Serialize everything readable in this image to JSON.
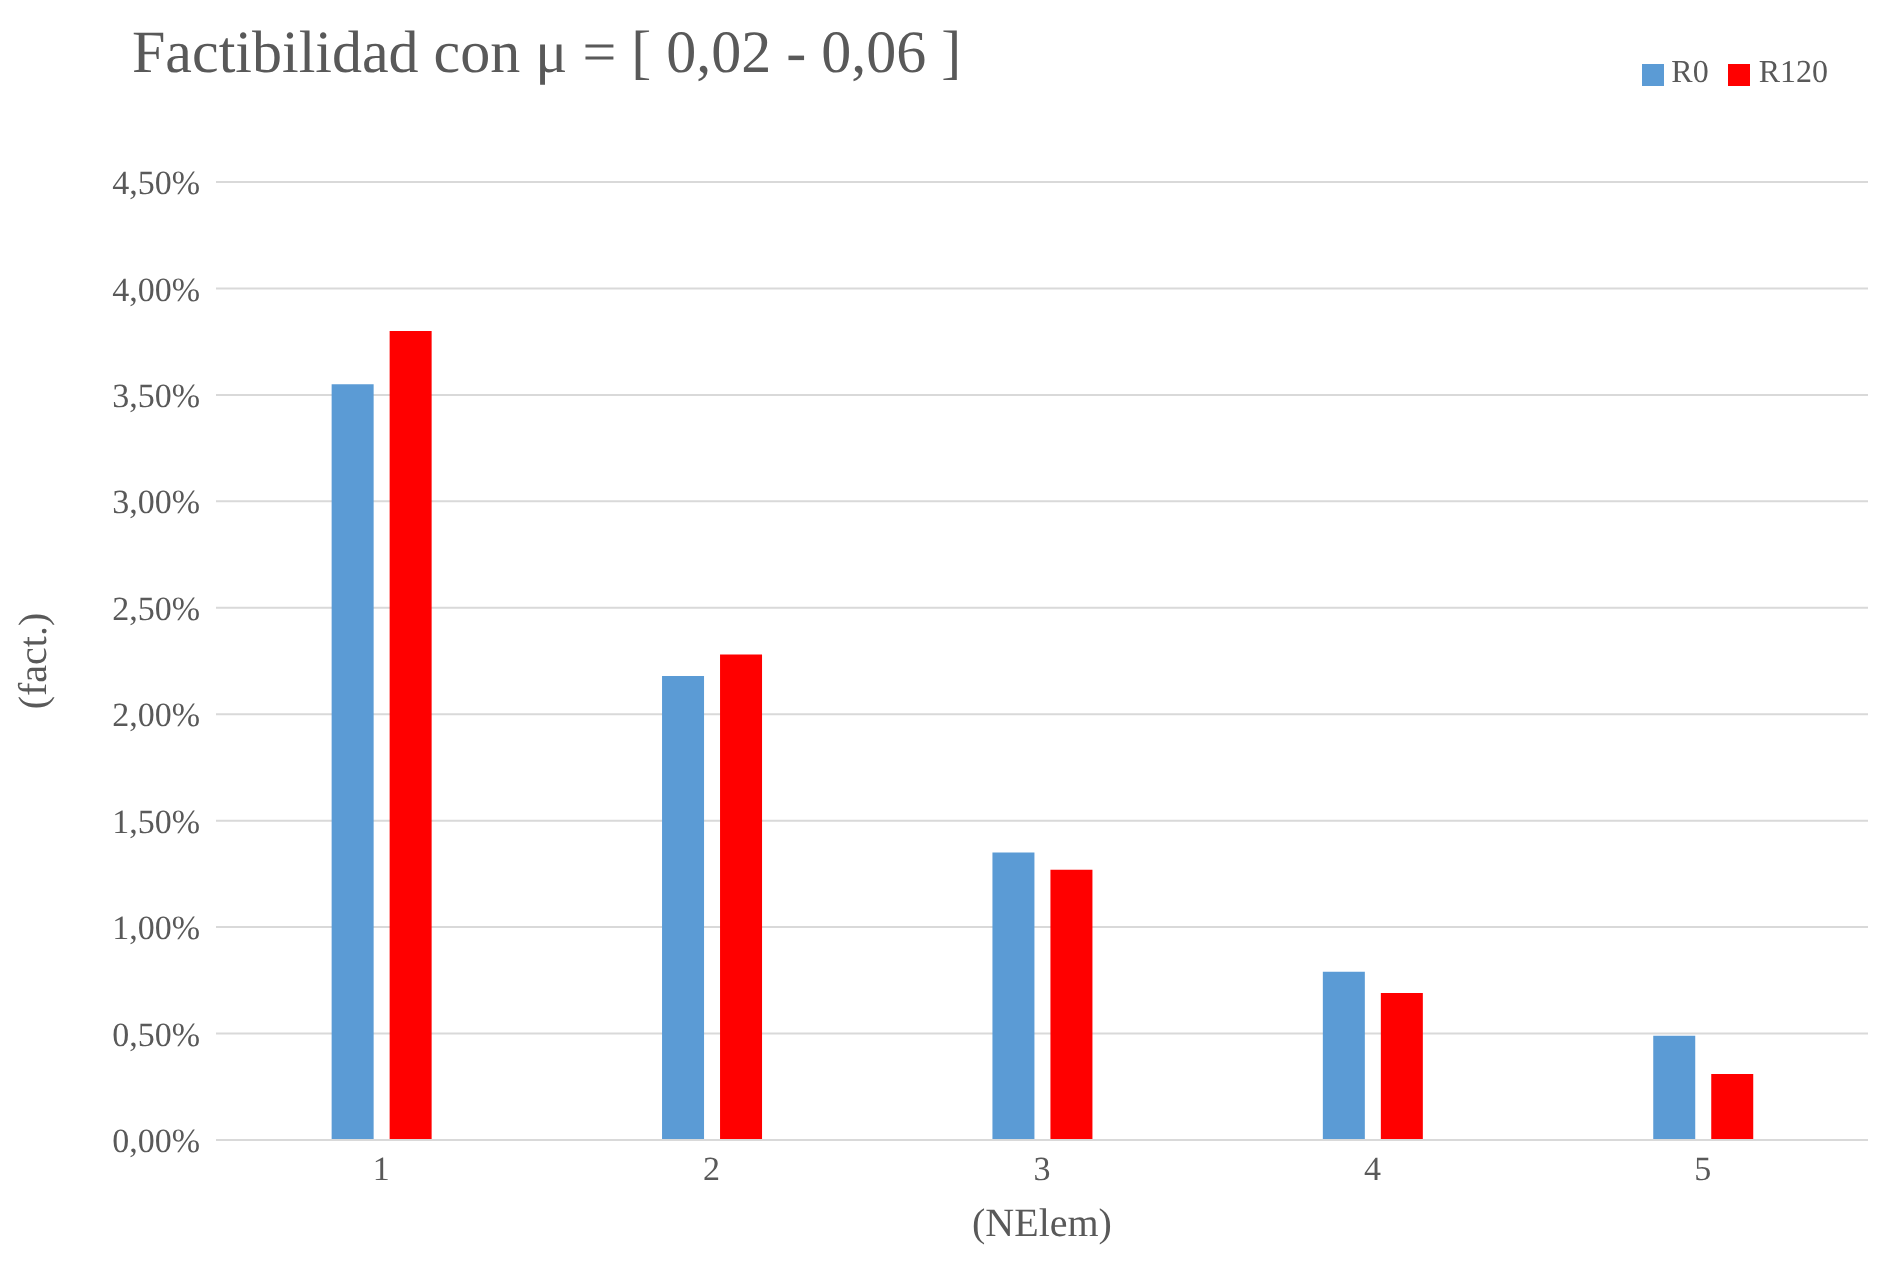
{
  "chart_data": {
    "type": "bar",
    "title": "Factibilidad con μ = [ 0,02 - 0,06 ]",
    "xlabel": "(NElem)",
    "ylabel": "(fact.)",
    "categories": [
      "1",
      "2",
      "3",
      "4",
      "5"
    ],
    "series": [
      {
        "name": "R0",
        "color": "#5b9bd5",
        "values": [
          3.55,
          2.18,
          1.35,
          0.79,
          0.49
        ]
      },
      {
        "name": "R120",
        "color": "#ff0000",
        "values": [
          3.8,
          2.28,
          1.27,
          0.69,
          0.31
        ]
      }
    ],
    "ylim": [
      0,
      4.5
    ],
    "yticks": [
      {
        "value": 0,
        "label": "0,00%"
      },
      {
        "value": 0.5,
        "label": "0,50%"
      },
      {
        "value": 1,
        "label": "1,00%"
      },
      {
        "value": 1.5,
        "label": "1,50%"
      },
      {
        "value": 2,
        "label": "2,00%"
      },
      {
        "value": 2.5,
        "label": "2,50%"
      },
      {
        "value": 3,
        "label": "3,00%"
      },
      {
        "value": 3.5,
        "label": "3,50%"
      },
      {
        "value": 4,
        "label": "4,00%"
      },
      {
        "value": 4.5,
        "label": "4,50%"
      }
    ],
    "grid": "y",
    "legend": "top right"
  }
}
